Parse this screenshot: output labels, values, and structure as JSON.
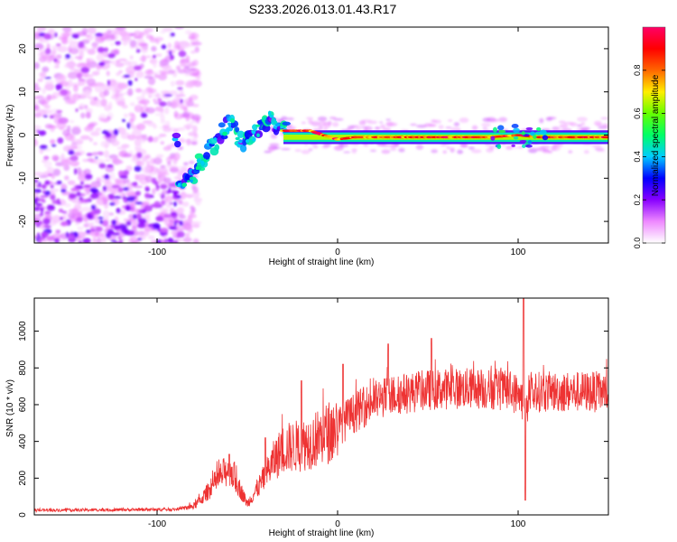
{
  "title": "S233.2026.013.01.43.R17",
  "chart_data": [
    {
      "type": "heatmap",
      "name": "spectrogram",
      "xlabel": "Height of straight line (km)",
      "ylabel": "Frequency (Hz)",
      "xlim": [
        -168,
        150
      ],
      "ylim": [
        -25,
        25
      ],
      "xticks": [
        -100,
        0,
        100
      ],
      "yticks": [
        -20,
        -10,
        0,
        10,
        20
      ],
      "colorbar": {
        "label": "Normalized spectral amplitude",
        "range": [
          0,
          1
        ],
        "ticks": [
          0.0,
          0.2,
          0.4,
          0.6,
          0.8
        ],
        "colormap": [
          "#ffffff",
          "#ee88ff",
          "#8800ff",
          "#0000ff",
          "#00ccff",
          "#00ff66",
          "#66ff00",
          "#ffee00",
          "#ff6600",
          "#ff0000",
          "#ff0066"
        ]
      },
      "features": {
        "noise_region_x": [
          -168,
          -85
        ],
        "noise_freq_range": [
          -25,
          25
        ],
        "drift_track": [
          [
            -88,
            -12
          ],
          [
            -80,
            -9
          ],
          [
            -72,
            -4
          ],
          [
            -65,
            0
          ],
          [
            -60,
            3
          ],
          [
            -52,
            -2
          ],
          [
            -45,
            1
          ],
          [
            -38,
            4
          ],
          [
            -32,
            1
          ],
          [
            -25,
            1
          ],
          [
            -15,
            1
          ],
          [
            -8,
            0
          ],
          [
            0,
            -1
          ],
          [
            10,
            -0.5
          ],
          [
            30,
            -0.5
          ],
          [
            60,
            -0.5
          ],
          [
            85,
            -0.5
          ],
          [
            100,
            0
          ],
          [
            110,
            -0.5
          ],
          [
            150,
            -0.5
          ]
        ],
        "steady_line_freq": -0.5
      }
    },
    {
      "type": "line",
      "name": "snr",
      "xlabel": "Height of straight line (km)",
      "ylabel": "SNR (10 * v/v)",
      "xlim": [
        -168,
        150
      ],
      "ylim": [
        0,
        1180
      ],
      "xticks": [
        -100,
        0,
        100
      ],
      "yticks": [
        0,
        200,
        400,
        600,
        800,
        1000
      ],
      "color": "#ee3333",
      "envelope": [
        [
          -168,
          25
        ],
        [
          -120,
          28
        ],
        [
          -90,
          30
        ],
        [
          -80,
          45
        ],
        [
          -75,
          90
        ],
        [
          -70,
          150
        ],
        [
          -60,
          260
        ],
        [
          -55,
          160
        ],
        [
          -50,
          60
        ],
        [
          -42,
          180
        ],
        [
          -35,
          300
        ],
        [
          -30,
          360
        ],
        [
          -20,
          380
        ],
        [
          -10,
          420
        ],
        [
          0,
          480
        ],
        [
          10,
          560
        ],
        [
          20,
          620
        ],
        [
          30,
          650
        ],
        [
          50,
          680
        ],
        [
          70,
          690
        ],
        [
          90,
          680
        ],
        [
          100,
          660
        ],
        [
          104,
          600
        ],
        [
          110,
          670
        ],
        [
          130,
          670
        ],
        [
          150,
          670
        ]
      ],
      "spikes": [
        [
          -60,
          330
        ],
        [
          -40,
          420
        ],
        [
          -20,
          730
        ],
        [
          3,
          820
        ],
        [
          28,
          930
        ],
        [
          52,
          960
        ],
        [
          103,
          1180
        ],
        [
          104,
          80
        ]
      ]
    }
  ]
}
